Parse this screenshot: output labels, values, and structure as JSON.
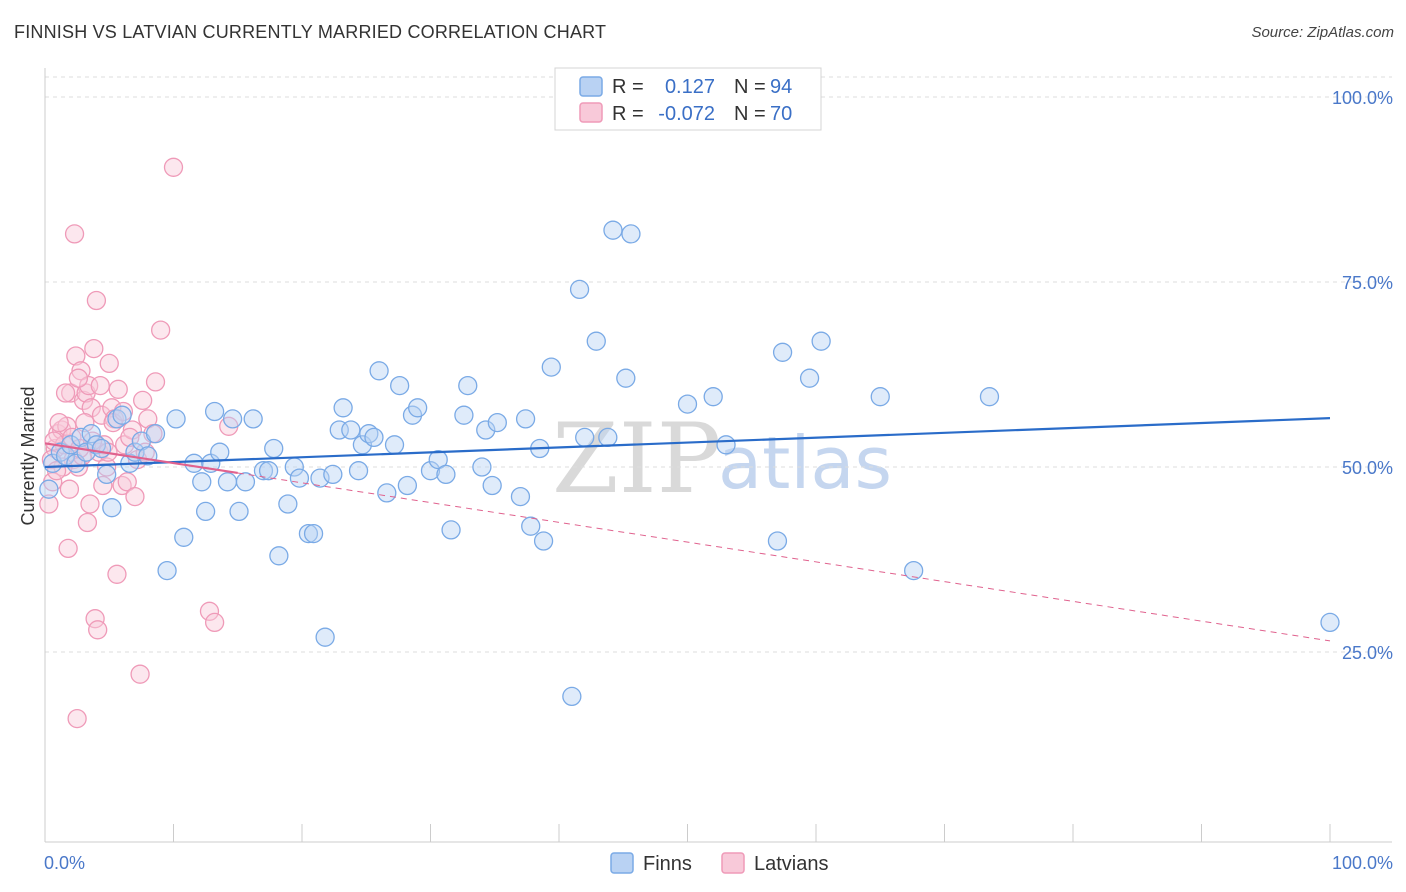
{
  "header": {
    "title": "FINNISH VS LATVIAN CURRENTLY MARRIED CORRELATION CHART",
    "source": "Source: ZipAtlas.com"
  },
  "colors": {
    "finns": "#7aaae6",
    "finns_fill": "#b9d2f3",
    "finns_line": "#2a6cc9",
    "latvians": "#ef9ab8",
    "latvians_fill": "#f8c9d9",
    "latvians_line": "#e0628e",
    "axis_label": "#4a78c9",
    "grid": "#dddddd"
  },
  "legend_top": {
    "rows": [
      {
        "r_label": "R =",
        "r_value": "0.127",
        "n_label": "N =",
        "n_value": "94"
      },
      {
        "r_label": "R =",
        "r_value": "-0.072",
        "n_label": "N =",
        "n_value": "70"
      }
    ]
  },
  "watermark": {
    "zip": "ZIP",
    "atlas": "atlas"
  },
  "chart_data": {
    "type": "scatter",
    "title": "FINNISH VS LATVIAN CURRENTLY MARRIED CORRELATION CHART",
    "xlabel": "",
    "ylabel": "Currently Married",
    "xlim": [
      0,
      100
    ],
    "ylim": [
      0,
      105
    ],
    "x_tick_labels": [
      "0.0%",
      "100.0%"
    ],
    "y_ticks": [
      25,
      50,
      75,
      100
    ],
    "y_tick_labels": [
      "25.0%",
      "50.0%",
      "75.0%",
      "100.0%"
    ],
    "grid": true,
    "legend_position": "bottom-center",
    "series": [
      {
        "name": "Finns",
        "r": 0.127,
        "n": 94,
        "trend": {
          "x": [
            0,
            100
          ],
          "y": [
            50.0,
            56.6
          ],
          "style": "solid"
        },
        "points": [
          [
            0.3,
            47.0
          ],
          [
            0.6,
            50.5
          ],
          [
            1.2,
            52.0
          ],
          [
            1.6,
            51.5
          ],
          [
            2.0,
            53.0
          ],
          [
            2.4,
            50.5
          ],
          [
            2.8,
            54.0
          ],
          [
            3.2,
            52.0
          ],
          [
            3.6,
            54.5
          ],
          [
            4.0,
            53.0
          ],
          [
            4.4,
            52.5
          ],
          [
            4.8,
            49.0
          ],
          [
            5.2,
            44.5
          ],
          [
            5.6,
            56.5
          ],
          [
            6.0,
            57.0
          ],
          [
            6.6,
            50.5
          ],
          [
            7.0,
            52.0
          ],
          [
            7.5,
            53.5
          ],
          [
            8.0,
            51.5
          ],
          [
            8.6,
            54.5
          ],
          [
            9.5,
            36.0
          ],
          [
            10.2,
            56.5
          ],
          [
            10.8,
            40.5
          ],
          [
            11.6,
            50.5
          ],
          [
            12.2,
            48.0
          ],
          [
            12.5,
            44.0
          ],
          [
            12.9,
            50.5
          ],
          [
            13.2,
            57.5
          ],
          [
            13.6,
            52.0
          ],
          [
            14.2,
            48.0
          ],
          [
            14.6,
            56.5
          ],
          [
            15.1,
            44.0
          ],
          [
            15.6,
            48.0
          ],
          [
            16.2,
            56.5
          ],
          [
            17.0,
            49.5
          ],
          [
            17.4,
            49.5
          ],
          [
            17.8,
            52.5
          ],
          [
            18.2,
            38.0
          ],
          [
            18.9,
            45.0
          ],
          [
            19.4,
            50.0
          ],
          [
            19.8,
            48.5
          ],
          [
            20.5,
            41.0
          ],
          [
            20.9,
            41.0
          ],
          [
            21.4,
            48.5
          ],
          [
            21.8,
            27.0
          ],
          [
            22.4,
            49.0
          ],
          [
            22.9,
            55.0
          ],
          [
            23.2,
            58.0
          ],
          [
            23.8,
            55.0
          ],
          [
            24.4,
            49.5
          ],
          [
            24.7,
            53.0
          ],
          [
            25.2,
            54.5
          ],
          [
            25.6,
            54.0
          ],
          [
            26.0,
            63.0
          ],
          [
            26.6,
            46.5
          ],
          [
            27.2,
            53.0
          ],
          [
            27.6,
            61.0
          ],
          [
            28.2,
            47.5
          ],
          [
            28.6,
            57.0
          ],
          [
            29.0,
            58.0
          ],
          [
            30.0,
            49.5
          ],
          [
            30.6,
            51.0
          ],
          [
            31.2,
            49.0
          ],
          [
            31.6,
            41.5
          ],
          [
            32.6,
            57.0
          ],
          [
            32.9,
            61.0
          ],
          [
            34.0,
            50.0
          ],
          [
            34.3,
            55.0
          ],
          [
            34.8,
            47.5
          ],
          [
            35.2,
            56.0
          ],
          [
            37.0,
            46.0
          ],
          [
            37.4,
            56.5
          ],
          [
            37.8,
            42.0
          ],
          [
            38.5,
            52.5
          ],
          [
            38.8,
            40.0
          ],
          [
            39.4,
            63.5
          ],
          [
            41.0,
            19.0
          ],
          [
            41.6,
            74.0
          ],
          [
            42.0,
            54.0
          ],
          [
            42.9,
            67.0
          ],
          [
            43.8,
            54.0
          ],
          [
            44.2,
            82.0
          ],
          [
            45.2,
            62.0
          ],
          [
            45.6,
            81.5
          ],
          [
            50.0,
            58.5
          ],
          [
            52.0,
            59.5
          ],
          [
            53.0,
            53.0
          ],
          [
            57.0,
            40.0
          ],
          [
            57.4,
            65.5
          ],
          [
            59.5,
            62.0
          ],
          [
            60.4,
            67.0
          ],
          [
            65.0,
            59.5
          ],
          [
            67.6,
            36.0
          ],
          [
            73.5,
            59.5
          ],
          [
            100.0,
            29.0
          ]
        ]
      },
      {
        "name": "Latvians",
        "r": -0.072,
        "n": 70,
        "trend": {
          "x": [
            0,
            100
          ],
          "y": [
            53.2,
            26.5
          ],
          "solid_until": 15.0,
          "style": "dashed-after"
        },
        "points": [
          [
            0.3,
            45.0
          ],
          [
            0.6,
            48.0
          ],
          [
            0.8,
            52.5
          ],
          [
            1.0,
            54.5
          ],
          [
            1.3,
            55.0
          ],
          [
            1.5,
            53.0
          ],
          [
            1.7,
            55.5
          ],
          [
            2.0,
            60.0
          ],
          [
            2.2,
            51.0
          ],
          [
            2.4,
            65.0
          ],
          [
            2.6,
            50.0
          ],
          [
            2.8,
            63.0
          ],
          [
            3.0,
            59.0
          ],
          [
            3.2,
            60.0
          ],
          [
            3.4,
            61.0
          ],
          [
            3.6,
            58.0
          ],
          [
            3.8,
            66.0
          ],
          [
            4.0,
            72.5
          ],
          [
            4.2,
            52.0
          ],
          [
            4.4,
            57.0
          ],
          [
            4.6,
            53.0
          ],
          [
            4.8,
            50.0
          ],
          [
            5.0,
            64.0
          ],
          [
            5.2,
            58.0
          ],
          [
            5.4,
            56.5
          ],
          [
            5.7,
            60.5
          ],
          [
            6.0,
            47.5
          ],
          [
            6.2,
            53.0
          ],
          [
            6.4,
            48.0
          ],
          [
            6.8,
            55.0
          ],
          [
            7.0,
            46.0
          ],
          [
            7.2,
            51.0
          ],
          [
            7.6,
            59.0
          ],
          [
            8.0,
            56.5
          ],
          [
            8.4,
            54.5
          ],
          [
            8.6,
            61.5
          ],
          [
            9.0,
            68.5
          ],
          [
            10.0,
            90.5
          ],
          [
            1.1,
            56.0
          ],
          [
            1.4,
            50.0
          ],
          [
            1.8,
            39.0
          ],
          [
            2.3,
            81.5
          ],
          [
            2.9,
            51.5
          ],
          [
            3.3,
            42.5
          ],
          [
            3.5,
            45.0
          ],
          [
            3.9,
            29.5
          ],
          [
            4.1,
            28.0
          ],
          [
            4.5,
            47.5
          ],
          [
            5.6,
            35.5
          ],
          [
            7.4,
            22.0
          ],
          [
            2.1,
            54.0
          ],
          [
            2.5,
            16.0
          ],
          [
            12.8,
            30.5
          ],
          [
            13.2,
            29.0
          ],
          [
            14.3,
            55.5
          ],
          [
            0.5,
            51.0
          ],
          [
            0.9,
            49.5
          ],
          [
            1.9,
            47.0
          ],
          [
            2.7,
            52.5
          ],
          [
            3.1,
            56.0
          ],
          [
            0.7,
            53.5
          ],
          [
            1.6,
            60.0
          ],
          [
            4.3,
            61.0
          ],
          [
            5.3,
            56.0
          ],
          [
            6.6,
            54.0
          ],
          [
            7.8,
            52.0
          ],
          [
            2.6,
            62.0
          ],
          [
            3.7,
            53.5
          ],
          [
            4.9,
            52.0
          ],
          [
            6.1,
            57.5
          ]
        ]
      }
    ]
  },
  "bottom_legend": {
    "items": [
      {
        "label": "Finns"
      },
      {
        "label": "Latvians"
      }
    ]
  }
}
